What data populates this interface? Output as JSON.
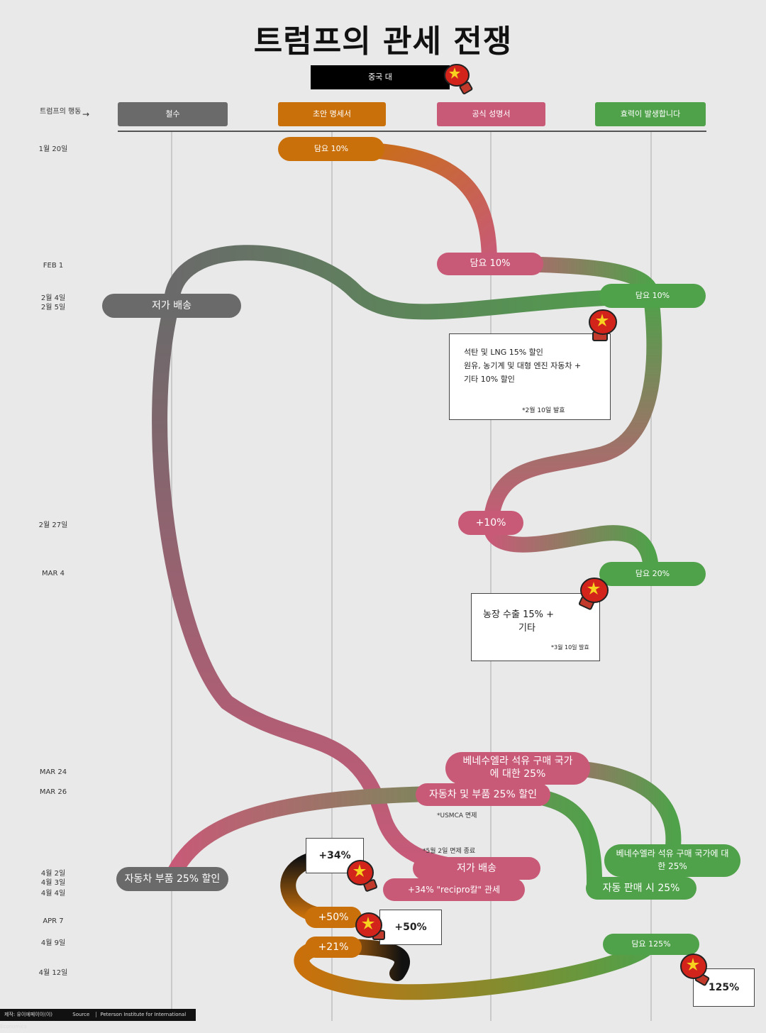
{
  "title": "트럼프의 관세 전쟁",
  "subtitle": "중국 대",
  "actions_label": "트럼프의 행동",
  "actions_arrow": "→",
  "columns": [
    {
      "label": "철수",
      "color": "#6a6a6a"
    },
    {
      "label": "초안 명세서",
      "color": "#c9700b"
    },
    {
      "label": "공식 성명서",
      "color": "#c85a78"
    },
    {
      "label": "효력이 발생합니다",
      "color": "#4fa14a"
    }
  ],
  "dates": [
    {
      "label": "1월 20일"
    },
    {
      "label": "FEB 1"
    },
    {
      "label": "2월 4일"
    },
    {
      "label": "2월 5일"
    },
    {
      "label": "2월 27일"
    },
    {
      "label": "MAR 4"
    },
    {
      "label": "MAR 24"
    },
    {
      "label": "MAR 26"
    },
    {
      "label": "4월 2일"
    },
    {
      "label": "4월 3일"
    },
    {
      "label": "4월 4일"
    },
    {
      "label": "APR 7"
    },
    {
      "label": "4월 9일"
    },
    {
      "label": "4월 12일"
    }
  ],
  "pills": {
    "jan20_draft": "담요 10%",
    "feb1_official": "담요 10%",
    "feb4_effective": "담요 10%",
    "feb5_withdraw": "저가 배송",
    "feb27_official": "+10%",
    "mar4_effective": "담요 20%",
    "mar24_official": "베네수엘라 석유 구매 국가에 대한 25%",
    "mar26_official": "자동차 및 부품 25% 할인",
    "apr2_withdraw": "자동차 부품 25% 할인",
    "apr2_official": "저가 배송",
    "apr3_official": "+34% \"recipro칼\" 관세",
    "apr2_effective": "베네수엘라 석유 구매 국가에 대한 25%",
    "apr3_effective": "자동 판매 시 25%",
    "apr7_draft": "+50%",
    "apr9_draft": "+21%",
    "apr9_effective": "담요 125%"
  },
  "notes": {
    "feb10_lines": [
      "석탄 및 LNG 15% 할인",
      "원유, 농기계 및 대형 엔진 자동차 +",
      "기타 10% 할인"
    ],
    "feb10_footnote": "*2월 10일 발효",
    "mar10_lines": [
      "농장 수출 15% +",
      "기타"
    ],
    "mar10_footnote": "*3월 10일 발효",
    "usmca": "*USMCA 면제",
    "may2": "*5월 2일 면제 종료"
  },
  "retaliation": {
    "r34": "+34%",
    "r50": "+50%",
    "r125": "125%"
  },
  "footer": {
    "credit": "제작: 유이에페이이(이)",
    "source_label": "Source",
    "source": "Peterson Institute for International Economics"
  },
  "icons": [
    "boxing-glove-china-flag-icon"
  ]
}
